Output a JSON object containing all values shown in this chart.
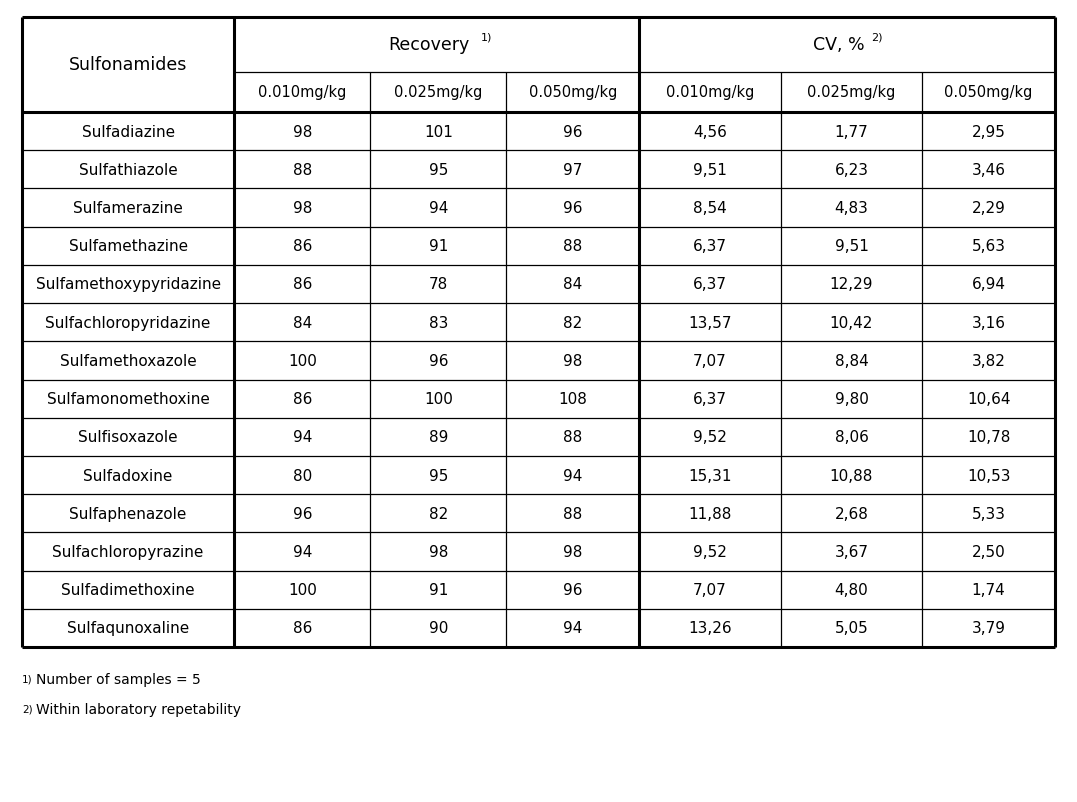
{
  "sulfonamides": [
    "Sulfadiazine",
    "Sulfathiazole",
    "Sulfamerazine",
    "Sulfamethazine",
    "Sulfamethoxypyridazine",
    "Sulfachloropyridazine",
    "Sulfamethoxazole",
    "Sulfamonomethoxine",
    "Sulfisoxazole",
    "Sulfadoxine",
    "Sulfaphenazole",
    "Sulfachloropyrazine",
    "Sulfadimethoxine",
    "Sulfaqunoxaline"
  ],
  "recovery": [
    [
      "98",
      "101",
      "96"
    ],
    [
      "88",
      "95",
      "97"
    ],
    [
      "98",
      "94",
      "96"
    ],
    [
      "86",
      "91",
      "88"
    ],
    [
      "86",
      "78",
      "84"
    ],
    [
      "84",
      "83",
      "82"
    ],
    [
      "100",
      "96",
      "98"
    ],
    [
      "86",
      "100",
      "108"
    ],
    [
      "94",
      "89",
      "88"
    ],
    [
      "80",
      "95",
      "94"
    ],
    [
      "96",
      "82",
      "88"
    ],
    [
      "94",
      "98",
      "98"
    ],
    [
      "100",
      "91",
      "96"
    ],
    [
      "86",
      "90",
      "94"
    ]
  ],
  "cv": [
    [
      "4,56",
      "1,77",
      "2,95"
    ],
    [
      "9,51",
      "6,23",
      "3,46"
    ],
    [
      "8,54",
      "4,83",
      "2,29"
    ],
    [
      "6,37",
      "9,51",
      "5,63"
    ],
    [
      "6,37",
      "12,29",
      "6,94"
    ],
    [
      "13,57",
      "10,42",
      "3,16"
    ],
    [
      "7,07",
      "8,84",
      "3,82"
    ],
    [
      "6,37",
      "9,80",
      "10,64"
    ],
    [
      "9,52",
      "8,06",
      "10,78"
    ],
    [
      "15,31",
      "10,88",
      "10,53"
    ],
    [
      "11,88",
      "2,68",
      "5,33"
    ],
    [
      "9,52",
      "3,67",
      "2,50"
    ],
    [
      "7,07",
      "4,80",
      "1,74"
    ],
    [
      "13,26",
      "5,05",
      "3,79"
    ]
  ],
  "header2": [
    "0.010mg/kg",
    "0.025mg/kg",
    "0.050mg/kg",
    "0.010mg/kg",
    "0.025mg/kg",
    "0.050mg/kg"
  ],
  "col1_label": "Sulfonamides",
  "recovery_label": "Recovery",
  "cv_label": "CV, %",
  "footnote1": "Number of samples = 5",
  "footnote2": "Within laboratory repetability",
  "bg_color": "#ffffff",
  "line_color": "#000000",
  "text_color": "#000000",
  "font_size": 11.0,
  "header_font_size": 12.5,
  "subheader_font_size": 10.5
}
